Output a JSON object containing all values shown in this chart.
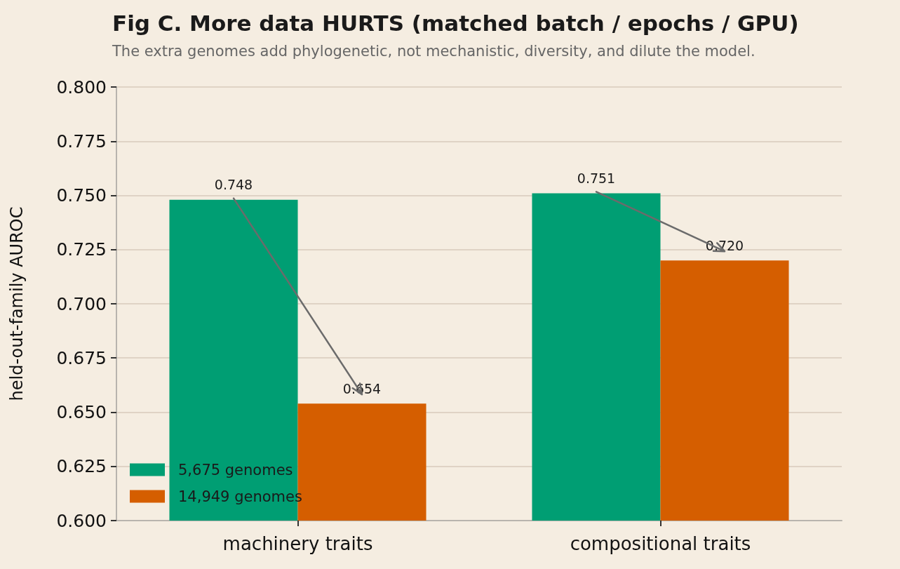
{
  "chart_data": {
    "type": "bar",
    "title": "Fig C. More data HURTS (matched batch / epochs / GPU)",
    "subtitle": "The extra genomes add phylogenetic, not mechanistic, diversity, and dilute the model.",
    "ylabel": "held-out-family AUROC",
    "categories": [
      "machinery traits",
      "compositional traits"
    ],
    "series": [
      {
        "name": "5,675 genomes",
        "color": "#009e73",
        "values": [
          0.748,
          0.751
        ],
        "value_labels": [
          "0.748",
          "0.751"
        ]
      },
      {
        "name": "14,949 genomes",
        "color": "#d55e00",
        "values": [
          0.654,
          0.72
        ],
        "value_labels": [
          "0.654",
          "0.720"
        ]
      }
    ],
    "ylim": [
      0.6,
      0.8
    ],
    "yticks": [
      {
        "value": 0.6,
        "label": "0.600"
      },
      {
        "value": 0.625,
        "label": "0.625"
      },
      {
        "value": 0.65,
        "label": "0.650"
      },
      {
        "value": 0.675,
        "label": "0.675"
      },
      {
        "value": 0.7,
        "label": "0.700"
      },
      {
        "value": 0.725,
        "label": "0.725"
      },
      {
        "value": 0.75,
        "label": "0.750"
      },
      {
        "value": 0.775,
        "label": "0.775"
      },
      {
        "value": 0.8,
        "label": "0.800"
      }
    ],
    "grid": "y",
    "legend": "bottom left"
  }
}
